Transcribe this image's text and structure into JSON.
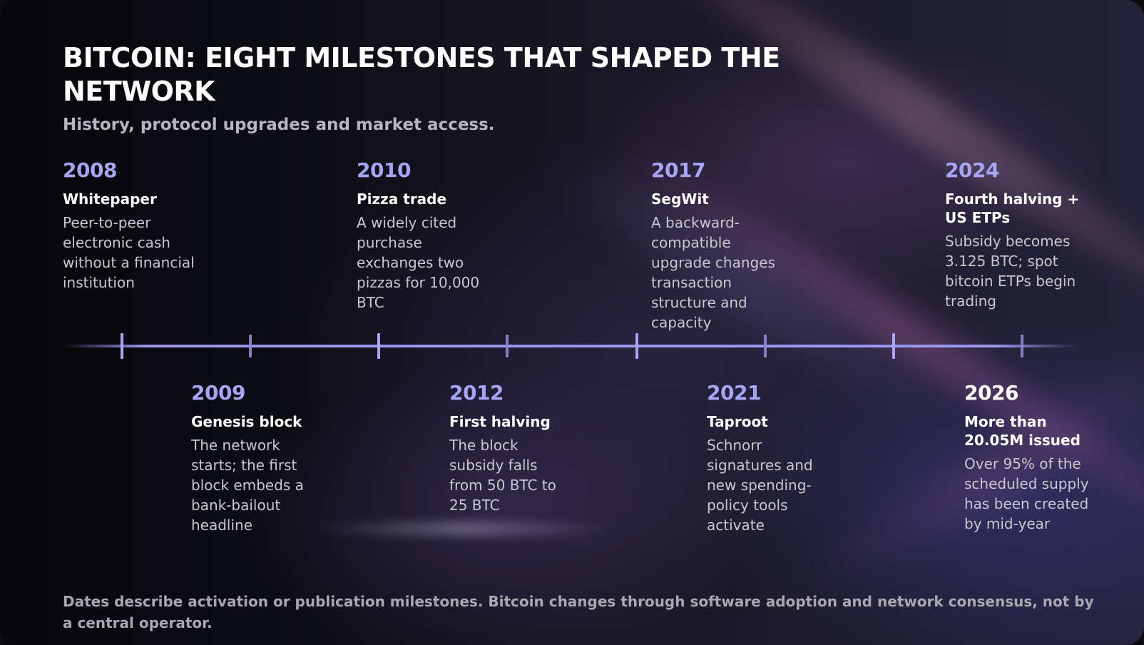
{
  "title": "BITCOIN: EIGHT MILESTONES THAT SHAPED THE NETWORK",
  "subtitle": "History, protocol upgrades and market access.",
  "milestones": [
    {
      "year": "2008",
      "name": "Whitepaper",
      "description": "Peer-to-peer electronic cash without a financial institution"
    },
    {
      "year": "2009",
      "name": "Genesis block",
      "description": "The network starts; the first block embeds a bank-bailout headline"
    },
    {
      "year": "2010",
      "name": "Pizza trade",
      "description": "A widely cited purchase exchanges two pizzas for 10,000 BTC"
    },
    {
      "year": "2012",
      "name": "First halving",
      "description": "The block subsidy falls from 50 BTC to 25 BTC"
    },
    {
      "year": "2017",
      "name": "SegWit",
      "description": "A backward-compatible upgrade changes transaction structure and capacity"
    },
    {
      "year": "2021",
      "name": "Taproot",
      "description": "Schnorr signatures and new spending-policy tools activate"
    },
    {
      "year": "2024",
      "name": "Fourth halving + US ETPs",
      "description": "Subsidy becomes 3.125 BTC; spot bitcoin ETPs begin trading"
    },
    {
      "year": "2026",
      "name": "More than 20.05M issued",
      "description": "Over 95% of the scheduled supply has been created by mid-year"
    }
  ],
  "footer": "Dates describe activation or publication milestones. Bitcoin changes through software adoption and network consensus, not by a central operator.",
  "colors": {
    "accent": "#a7a5f5",
    "axis": "#9c98ec",
    "background": "#0b0b10"
  }
}
